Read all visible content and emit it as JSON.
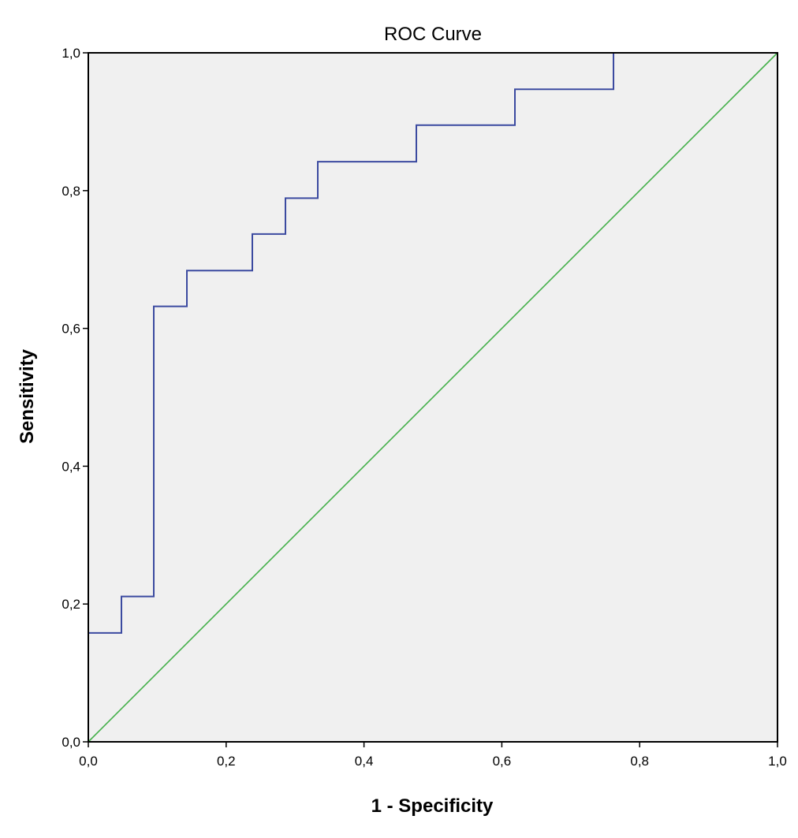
{
  "chart_data": {
    "type": "line",
    "title": "ROC Curve",
    "xlabel": "1 - Specificity",
    "ylabel": "Sensitivity",
    "xlim": [
      0,
      1
    ],
    "ylim": [
      0,
      1
    ],
    "x_ticks": [
      "0,0",
      "0,2",
      "0,4",
      "0,6",
      "0,8",
      "1,0"
    ],
    "y_ticks": [
      "0,0",
      "0,2",
      "0,4",
      "0,6",
      "0,8",
      "1,0"
    ],
    "grid": false,
    "background_color": "#f0f0f0",
    "series": [
      {
        "color": "#3b4aa0",
        "interpolation": "step",
        "x": [
          0,
          0,
          0.048,
          0.048,
          0.095,
          0.095,
          0.143,
          0.143,
          0.238,
          0.238,
          0.286,
          0.286,
          0.333,
          0.333,
          0.476,
          0.476,
          0.619,
          0.619,
          0.762,
          0.762,
          1.0
        ],
        "y": [
          0,
          0.158,
          0.158,
          0.211,
          0.211,
          0.632,
          0.632,
          0.684,
          0.684,
          0.737,
          0.737,
          0.789,
          0.789,
          0.842,
          0.842,
          0.895,
          0.895,
          0.947,
          0.947,
          1.0,
          1.0
        ]
      },
      {
        "color": "#44b04a",
        "interpolation": "linear",
        "x": [
          0,
          1
        ],
        "y": [
          0,
          1
        ]
      }
    ]
  }
}
